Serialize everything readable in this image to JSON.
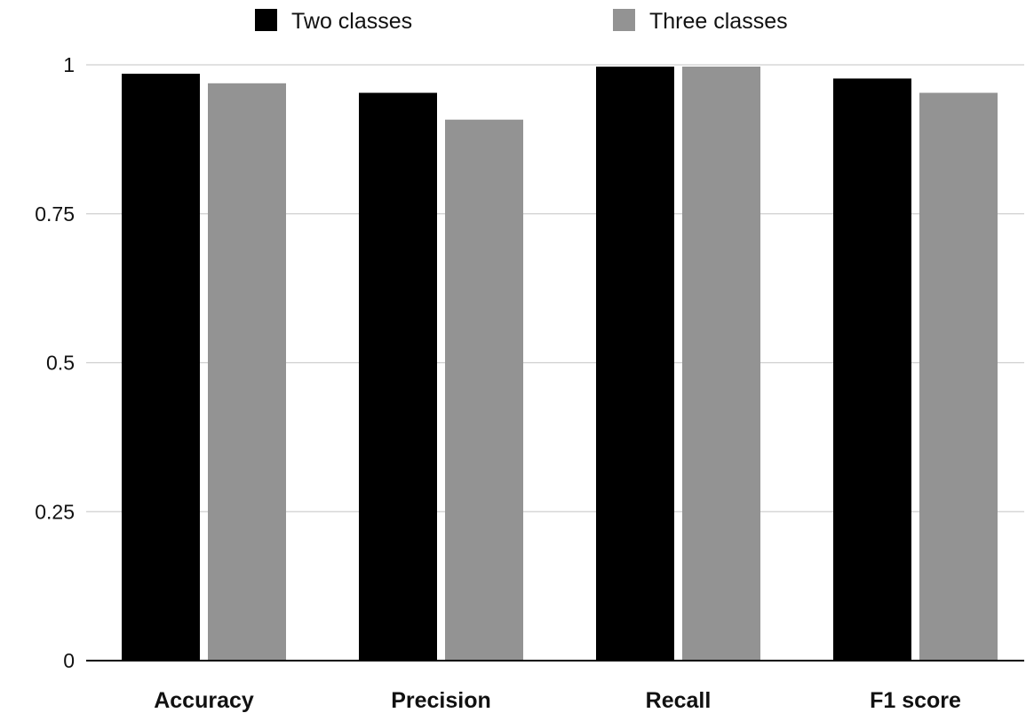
{
  "chart_data": {
    "type": "bar",
    "categories": [
      "Accuracy",
      "Precision",
      "Recall",
      "F1 score"
    ],
    "series": [
      {
        "name": "Two classes",
        "color": "#000000",
        "values": [
          0.985,
          0.953,
          0.997,
          0.977
        ]
      },
      {
        "name": "Three classes",
        "color": "#939393",
        "values": [
          0.969,
          0.908,
          0.997,
          0.953
        ]
      }
    ],
    "yticks": [
      "0",
      "0.25",
      "0.5",
      "0.75",
      "1"
    ],
    "ylim": [
      0,
      1
    ],
    "grid": true,
    "legend_position": "top-center",
    "title": "",
    "xlabel": "",
    "ylabel": ""
  }
}
